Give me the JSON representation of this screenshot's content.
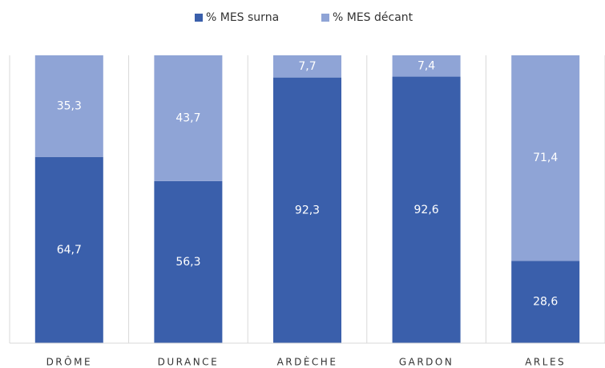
{
  "chart_data": {
    "type": "stacked_bar",
    "categories": [
      "DRÔME",
      "DURANCE",
      "ARDÈCHE",
      "GARDON",
      "ARLES"
    ],
    "series": [
      {
        "name": "% MES surna",
        "color": "#3a5fab",
        "values": [
          64.7,
          56.3,
          92.3,
          92.6,
          28.6
        ],
        "value_labels": [
          "64,7",
          "56,3",
          "92,3",
          "92,6",
          "28,6"
        ]
      },
      {
        "name": "% MES décant",
        "color": "#8fa4d6",
        "values": [
          35.3,
          43.7,
          7.7,
          7.4,
          71.4
        ],
        "value_labels": [
          "35,3",
          "43,7",
          "7,7",
          "7,4",
          "71,4"
        ]
      }
    ],
    "ylim": [
      0,
      100
    ],
    "legend": "top"
  }
}
